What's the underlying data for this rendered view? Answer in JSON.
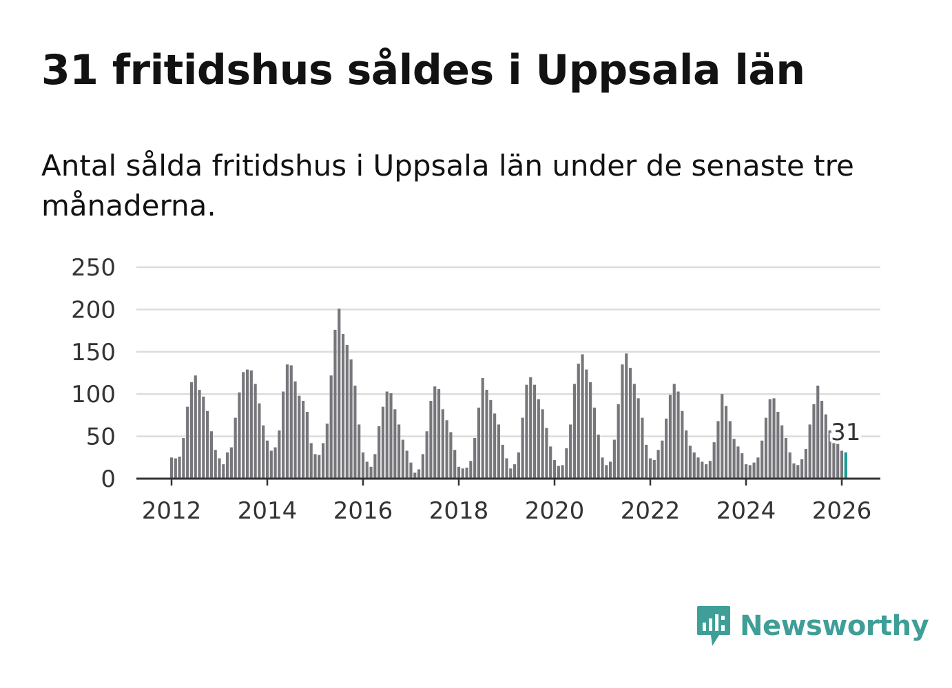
{
  "title": "31 fritidshus såldes i Uppsala län",
  "subtitle": "Antal sålda fritidshus i Uppsala län under de senaste tre månaderna.",
  "brand": {
    "name": "Newsworthy",
    "icon": "newsworthy-logo-icon",
    "color": "#3f9e97"
  },
  "colors": {
    "bar": "#77767b",
    "highlight": "#1a9a90",
    "grid": "#dcdcdc",
    "axis": "#333333"
  },
  "chart_data": {
    "type": "bar",
    "title": "31 fritidshus såldes i Uppsala län",
    "subtitle": "Antal sålda fritidshus i Uppsala län under de senaste tre månaderna.",
    "xlabel": "",
    "ylabel": "",
    "ylim": [
      0,
      250
    ],
    "yticks": [
      0,
      50,
      100,
      150,
      200,
      250
    ],
    "xticks": [
      "2012",
      "2014",
      "2016",
      "2018",
      "2020",
      "2022",
      "2024",
      "2026"
    ],
    "grid": true,
    "start": "2012-01",
    "end": "2026-02",
    "frequency": "monthly",
    "values": [
      25,
      24,
      26,
      48,
      85,
      114,
      122,
      105,
      97,
      80,
      56,
      34,
      24,
      17,
      31,
      37,
      72,
      102,
      126,
      129,
      128,
      112,
      89,
      63,
      45,
      33,
      37,
      57,
      103,
      135,
      134,
      115,
      98,
      92,
      79,
      42,
      29,
      28,
      42,
      65,
      122,
      176,
      201,
      171,
      158,
      141,
      110,
      64,
      31,
      20,
      14,
      29,
      62,
      85,
      103,
      101,
      82,
      64,
      46,
      33,
      19,
      7,
      11,
      29,
      56,
      92,
      109,
      106,
      82,
      69,
      55,
      34,
      14,
      12,
      13,
      21,
      48,
      84,
      119,
      105,
      93,
      77,
      64,
      40,
      24,
      12,
      17,
      31,
      72,
      111,
      120,
      111,
      94,
      82,
      60,
      38,
      22,
      15,
      16,
      36,
      64,
      112,
      136,
      147,
      129,
      114,
      84,
      52,
      25,
      16,
      20,
      46,
      88,
      135,
      148,
      131,
      112,
      95,
      72,
      40,
      24,
      22,
      34,
      45,
      71,
      99,
      112,
      103,
      80,
      57,
      39,
      31,
      25,
      20,
      17,
      21,
      43,
      68,
      100,
      86,
      68,
      47,
      38,
      30,
      17,
      16,
      19,
      25,
      45,
      72,
      94,
      95,
      79,
      63,
      48,
      31,
      18,
      16,
      23,
      35,
      64,
      88,
      110,
      92,
      76,
      57,
      42,
      41,
      33,
      31
    ],
    "highlight_last": 1,
    "annotation": {
      "label": "31",
      "value": 31
    }
  }
}
